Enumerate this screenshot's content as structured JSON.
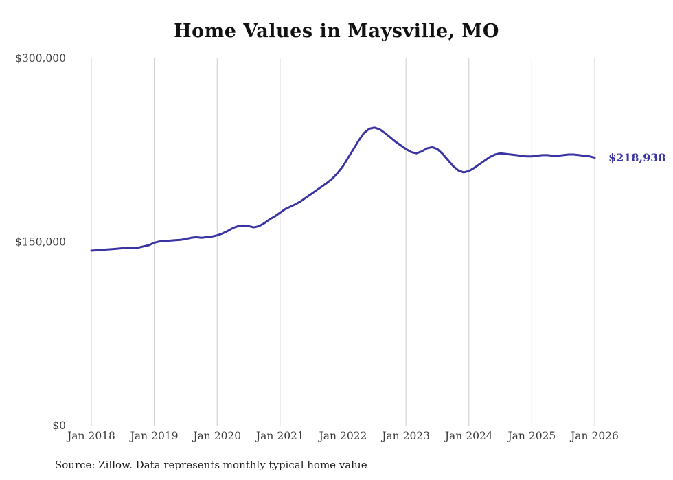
{
  "title": "Home Values in Maysville, MO",
  "end_label": "$218,938",
  "source": "Source: Zillow. Data represents monthly typical home value",
  "colors": {
    "line": "#3a34a3",
    "grid": "#cccccc",
    "axis_text": "#3a3a3a",
    "end_label": "#3a34a3"
  },
  "chart_data": {
    "type": "line",
    "title": "Home Values in Maysville, MO",
    "series_name": "Typical home value (USD)",
    "x_interval": "monthly",
    "x_range": [
      "Jan 2018",
      "Jan 2026"
    ],
    "x_tick_labels": [
      "Jan 2018",
      "Jan 2019",
      "Jan 2020",
      "Jan 2021",
      "Jan 2022",
      "Jan 2023",
      "Jan 2024",
      "Jan 2025",
      "Jan 2026"
    ],
    "y_tick_values": [
      0,
      150000,
      300000
    ],
    "y_tick_labels": [
      "$0",
      "$150,000",
      "$300,000"
    ],
    "ylim": [
      0,
      300000
    ],
    "grid": "vertical-only",
    "legend": "none",
    "end_value": 218938,
    "values": [
      143000,
      143300,
      143600,
      144000,
      144300,
      144600,
      145000,
      145200,
      145000,
      145500,
      146500,
      147500,
      149500,
      150500,
      151000,
      151200,
      151500,
      151800,
      152500,
      153500,
      154000,
      153500,
      154000,
      154500,
      155500,
      157000,
      159000,
      161500,
      163000,
      163500,
      163000,
      162000,
      163000,
      165500,
      168500,
      171000,
      174000,
      177000,
      179000,
      181000,
      183500,
      186500,
      189500,
      192500,
      195500,
      198500,
      202000,
      206500,
      212000,
      219000,
      226000,
      233000,
      239000,
      242500,
      243500,
      242000,
      239000,
      235500,
      232000,
      229000,
      226000,
      223500,
      222500,
      224000,
      226500,
      227500,
      226000,
      222000,
      217000,
      212000,
      208500,
      207000,
      208000,
      210500,
      213500,
      216500,
      219500,
      221500,
      222500,
      222000,
      221500,
      221000,
      220500,
      220000,
      220000,
      220500,
      221000,
      221000,
      220500,
      220500,
      221000,
      221500,
      221500,
      221000,
      220500,
      220000,
      218938
    ]
  }
}
